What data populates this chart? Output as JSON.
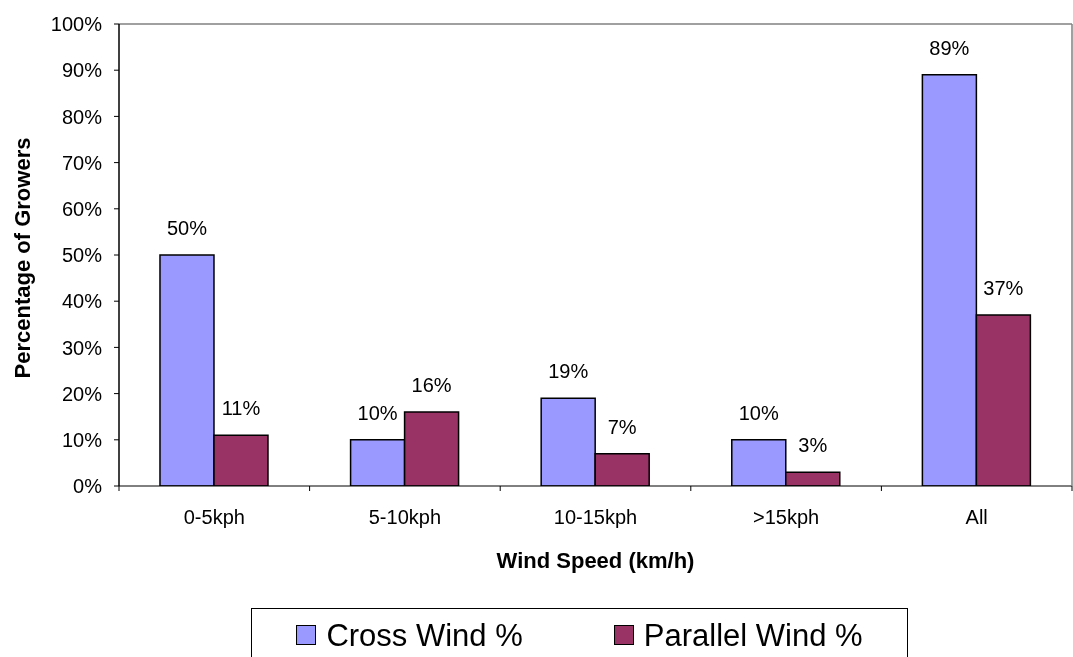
{
  "chart_data": {
    "type": "bar",
    "xlabel": "Wind Speed (km/h)",
    "ylabel": "Percentage of Growers",
    "categories": [
      "0-5kph",
      "5-10kph",
      "10-15kph",
      ">15kph",
      "All"
    ],
    "series": [
      {
        "name": "Cross Wind %",
        "color": "#9999ff",
        "values": [
          50,
          10,
          19,
          10,
          89
        ],
        "value_labels": [
          "50%",
          "10%",
          "19%",
          "10%",
          "89%"
        ]
      },
      {
        "name": "Parallel Wind %",
        "color": "#993366",
        "values": [
          11,
          16,
          7,
          3,
          37
        ],
        "value_labels": [
          "11%",
          "16%",
          "7%",
          "3%",
          "37%"
        ]
      }
    ],
    "ylim": [
      0,
      100
    ],
    "yticks": [
      {
        "value": 0,
        "label": "0%"
      },
      {
        "value": 10,
        "label": "10%"
      },
      {
        "value": 20,
        "label": "20%"
      },
      {
        "value": 30,
        "label": "30%"
      },
      {
        "value": 40,
        "label": "40%"
      },
      {
        "value": 50,
        "label": "50%"
      },
      {
        "value": 60,
        "label": "60%"
      },
      {
        "value": 70,
        "label": "70%"
      },
      {
        "value": 80,
        "label": "80%"
      },
      {
        "value": 90,
        "label": "90%"
      },
      {
        "value": 100,
        "label": "100%"
      }
    ],
    "legend": "bottom"
  }
}
